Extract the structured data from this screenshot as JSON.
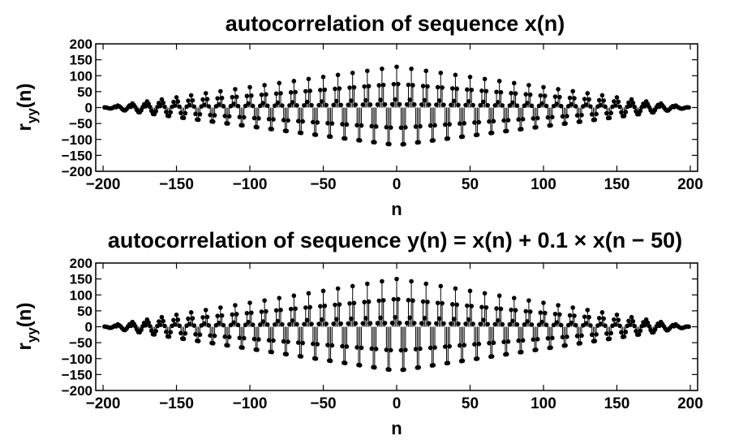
{
  "chart_data": [
    {
      "type": "stem",
      "title": "autocorrelation of sequence x(n)",
      "xlabel": "n",
      "ylabel_main": "r",
      "ylabel_sub": "yy",
      "ylabel_tail": "(n)",
      "xlim": [
        -205,
        205
      ],
      "ylim": [
        -200,
        200
      ],
      "xticks": [
        -200,
        -150,
        -100,
        -50,
        0,
        50,
        100,
        150,
        200
      ],
      "yticks": [
        -200,
        -150,
        -100,
        -50,
        0,
        50,
        100,
        150,
        200
      ],
      "grid": false,
      "signal": {
        "n_range": [
          -199,
          199
        ],
        "peak": 128,
        "envelope": "triangular",
        "envelope_support": 200,
        "pattern_period": 10,
        "pattern_weights": [
          1.0,
          0.58,
          0.08,
          -0.5,
          -0.92,
          -0.92,
          -0.5,
          0.08,
          0.58,
          0.2
        ]
      }
    },
    {
      "type": "stem",
      "title": "autocorrelation of sequence y(n) = x(n) + 0.1 × x(n − 50)",
      "xlabel": "n",
      "ylabel_main": "r",
      "ylabel_sub": "yy",
      "ylabel_tail": "(n)",
      "xlim": [
        -205,
        205
      ],
      "ylim": [
        -200,
        200
      ],
      "xticks": [
        -200,
        -150,
        -100,
        -50,
        0,
        50,
        100,
        150,
        200
      ],
      "yticks": [
        -200,
        -150,
        -100,
        -50,
        0,
        50,
        100,
        150,
        200
      ],
      "grid": false,
      "signal": {
        "n_range": [
          -199,
          199
        ],
        "peak": 150,
        "envelope": "triangular",
        "envelope_support": 200,
        "pattern_period": 10,
        "pattern_weights": [
          1.0,
          0.58,
          0.08,
          -0.5,
          -0.92,
          -0.92,
          -0.5,
          0.08,
          0.58,
          0.2
        ]
      }
    }
  ]
}
